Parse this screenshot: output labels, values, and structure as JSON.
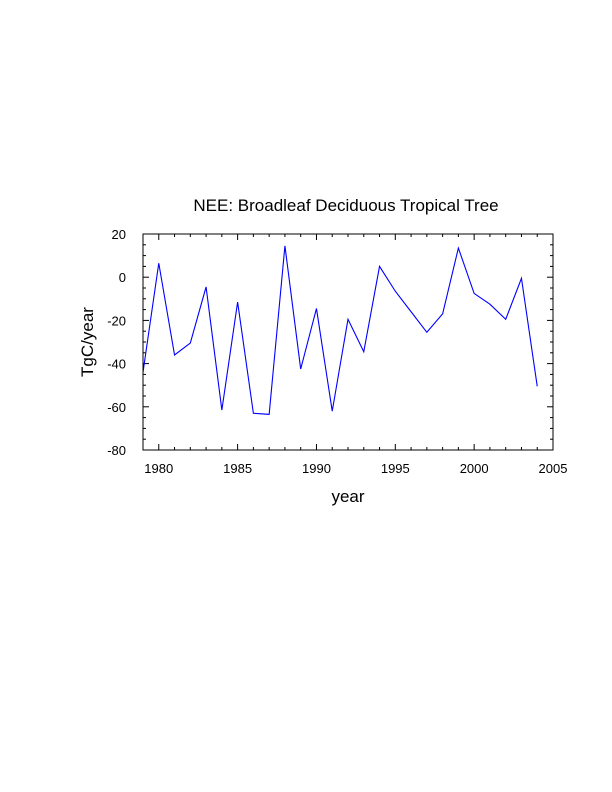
{
  "chart_data": {
    "type": "line",
    "title": "NEE: Broadleaf Deciduous Tropical Tree",
    "xlabel": "year",
    "ylabel": "TgC/year",
    "xlim": [
      1979,
      2005
    ],
    "ylim": [
      -80,
      20
    ],
    "xticks": [
      1980,
      1985,
      1990,
      1995,
      2000,
      2005
    ],
    "yticks": [
      20,
      0,
      -20,
      -40,
      -60,
      -80
    ],
    "grid": false,
    "series": [
      {
        "name": "NEE",
        "color": "#0000ff",
        "x": [
          1979,
          1980,
          1981,
          1982,
          1983,
          1984,
          1985,
          1986,
          1987,
          1988,
          1989,
          1990,
          1991,
          1992,
          1993,
          1994,
          1995,
          1996,
          1997,
          1998,
          1999,
          2000,
          2001,
          2002,
          2003,
          2004
        ],
        "values": [
          -44,
          6.5,
          -36,
          -30.5,
          -4.5,
          -61.5,
          -11.5,
          -63,
          -63.5,
          14.5,
          -42.5,
          -14.5,
          -62,
          -19.5,
          -34.5,
          5,
          -6.5,
          -16,
          -25.5,
          -17,
          13.5,
          -7.5,
          -12.5,
          -19.5,
          -0.5,
          -50.5
        ]
      }
    ]
  }
}
